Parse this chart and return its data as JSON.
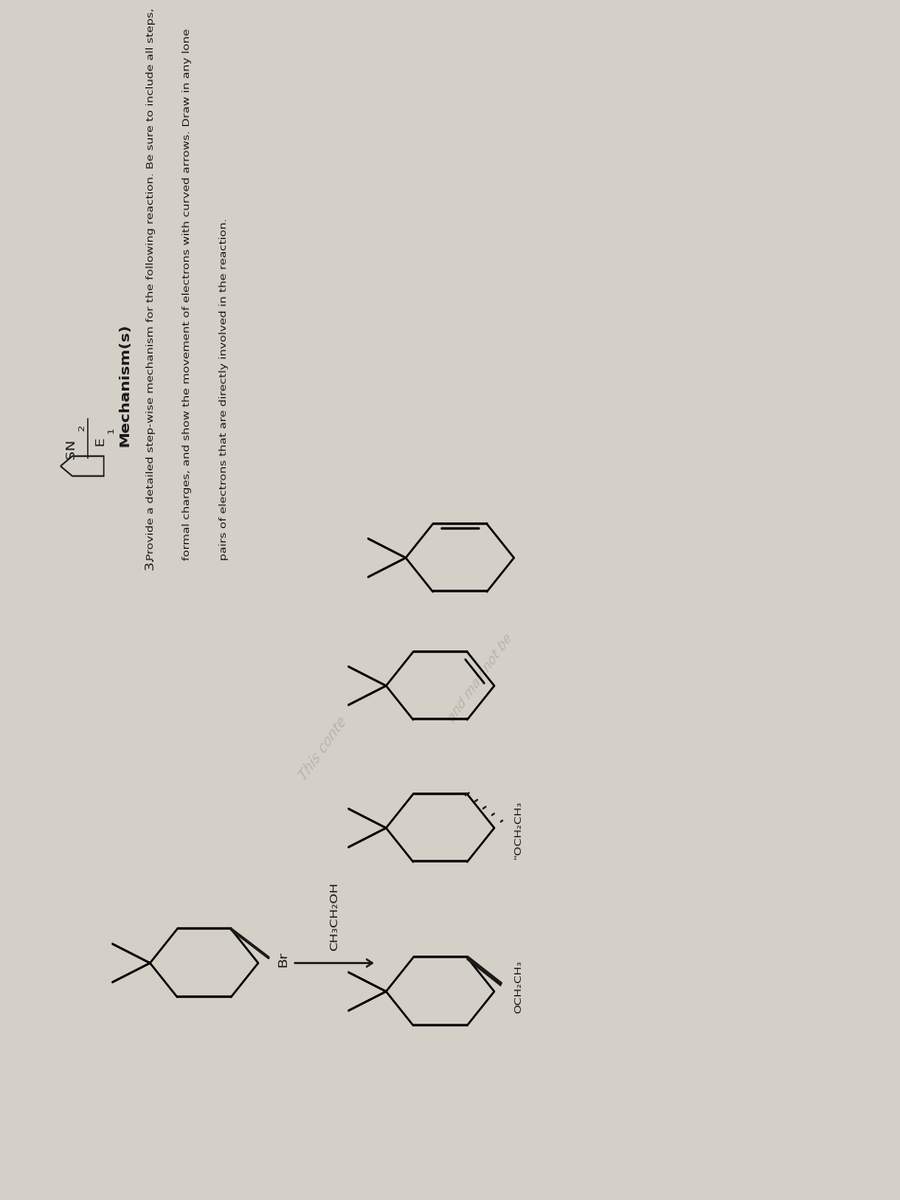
{
  "bg_color": "#cdc9c0",
  "text_color": "#1a1a1a",
  "watermark_color": "#b8b4aa",
  "title": "Mechanism(s)",
  "sn2e1": "SN₂/E₁",
  "q_num": "3.",
  "q_line1": "Provide a detailed step-wise mechanism for the following reaction. Be sure to include all steps,",
  "q_line2": "formal charges, and show the movement of electrons with curved arrows. Draw in any lone",
  "q_line3": "pairs of electrons that are directly involved in the reaction.",
  "reagent": "CH₃CH₂OH",
  "br_label": "Br",
  "och2ch3_bold": "OCH₂CH₃",
  "och2ch3_dash": "\"OCH₂CH₃",
  "paper_color": "#d4d0c8"
}
